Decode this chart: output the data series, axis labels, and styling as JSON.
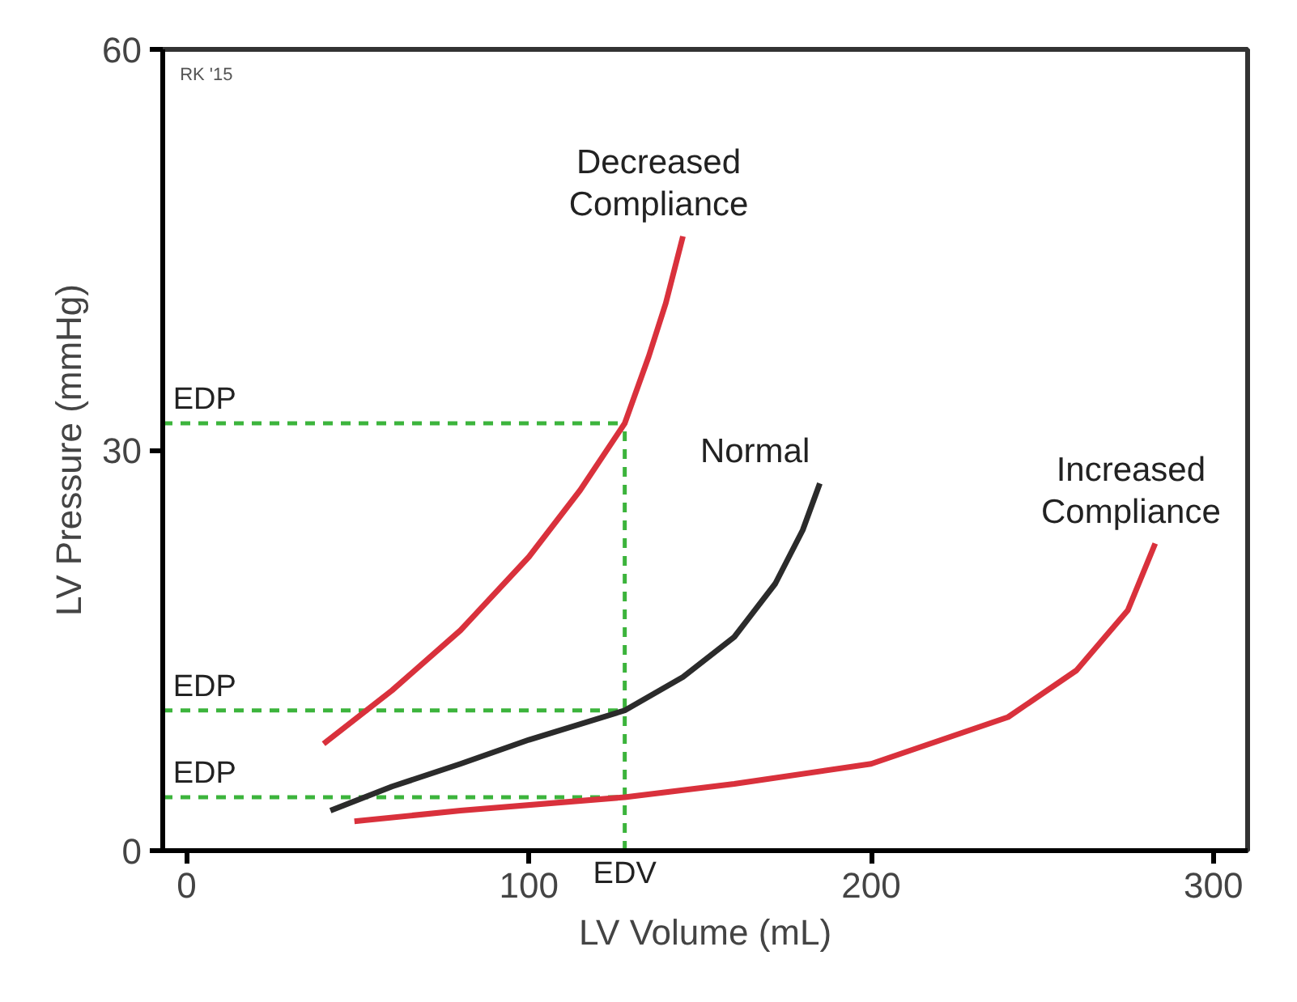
{
  "chart_data": {
    "type": "line",
    "xlabel": "LV Volume (mL)",
    "ylabel": "LV Pressure (mmHg)",
    "xlim": [
      -7,
      310
    ],
    "ylim": [
      0,
      60
    ],
    "xticks": [
      0,
      100,
      200,
      300
    ],
    "yticks": [
      0,
      30,
      60
    ],
    "grid": false,
    "line_style": "solid",
    "marker": "none",
    "series": [
      {
        "name": "Decreased Compliance",
        "color": "#d9313c",
        "x": [
          40,
          60,
          80,
          100,
          115,
          128,
          135,
          140,
          145
        ],
        "values": [
          8,
          12,
          16.5,
          22,
          27,
          32,
          37,
          41,
          46
        ]
      },
      {
        "name": "Normal",
        "color": "#2b2b2b",
        "x": [
          42,
          60,
          80,
          100,
          128,
          145,
          160,
          172,
          180,
          185
        ],
        "values": [
          3,
          4.8,
          6.5,
          8.3,
          10.5,
          13,
          16,
          20,
          24,
          27.5
        ]
      },
      {
        "name": "Increased Compliance",
        "color": "#d9313c",
        "x": [
          49,
          80,
          128,
          160,
          200,
          240,
          260,
          275,
          283
        ],
        "values": [
          2.2,
          3,
          4,
          5,
          6.5,
          10,
          13.5,
          18,
          23
        ]
      }
    ],
    "ref_lines": [
      {
        "axis": "y",
        "value": 32,
        "label": "EDP",
        "color": "#3cb43c",
        "line_style": "dashed"
      },
      {
        "axis": "y",
        "value": 10.5,
        "label": "EDP",
        "color": "#3cb43c",
        "line_style": "dashed"
      },
      {
        "axis": "y",
        "value": 4,
        "label": "EDP",
        "color": "#3cb43c",
        "line_style": "dashed"
      },
      {
        "axis": "x",
        "value": 128,
        "label": "EDV",
        "color": "#3cb43c",
        "line_style": "dashed"
      }
    ],
    "annotations": [
      "RK '15"
    ]
  }
}
